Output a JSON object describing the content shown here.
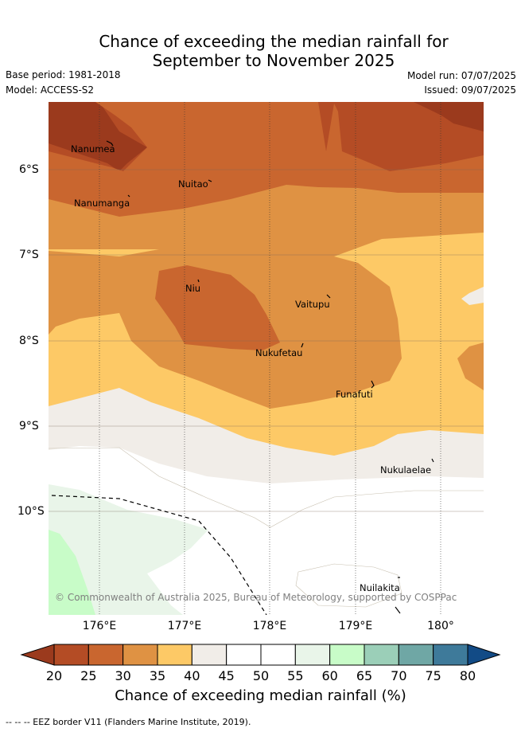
{
  "title_line1": "Chance of exceeding the median rainfall for",
  "title_line2": "September to November 2025",
  "meta": {
    "base_period": "Base period: 1981-2018",
    "model": "Model: ACCESS-S2",
    "model_run": "Model run: 07/07/2025",
    "issued": "Issued: 09/07/2025"
  },
  "map": {
    "lon_labels": [
      "176°E",
      "177°E",
      "178°E",
      "179°E",
      "180°"
    ],
    "lat_labels": [
      "6°S",
      "7°S",
      "8°S",
      "9°S",
      "10°S"
    ],
    "places": [
      "Nanumea",
      "Nanumanga",
      "Nuitao",
      "Niu",
      "Vaitupu",
      "Nukufetau",
      "Funafuti",
      "Nukulaelae",
      "Nuilakita"
    ],
    "copyright": "© Commonwealth of Australia 2025, Bureau of Meteorology, supported by COSPPac"
  },
  "legend": {
    "ticks": [
      "20",
      "25",
      "30",
      "35",
      "40",
      "45",
      "50",
      "55",
      "60",
      "65",
      "70",
      "75",
      "80"
    ],
    "label": "Chance of exceeding median rainfall (%)",
    "colors": [
      "#9b3a1d",
      "#b44c25",
      "#c9662f",
      "#df9243",
      "#fdc966",
      "#f1ede8",
      "#ffffff",
      "#ffffff",
      "#e9f5e9",
      "#c8fcc8",
      "#9bcfb8",
      "#6fa7a5",
      "#3e7a9a",
      "#124b86"
    ]
  },
  "eez_note": "-- -- -- EEZ border V11 (Flanders Marine Institute, 2019)."
}
